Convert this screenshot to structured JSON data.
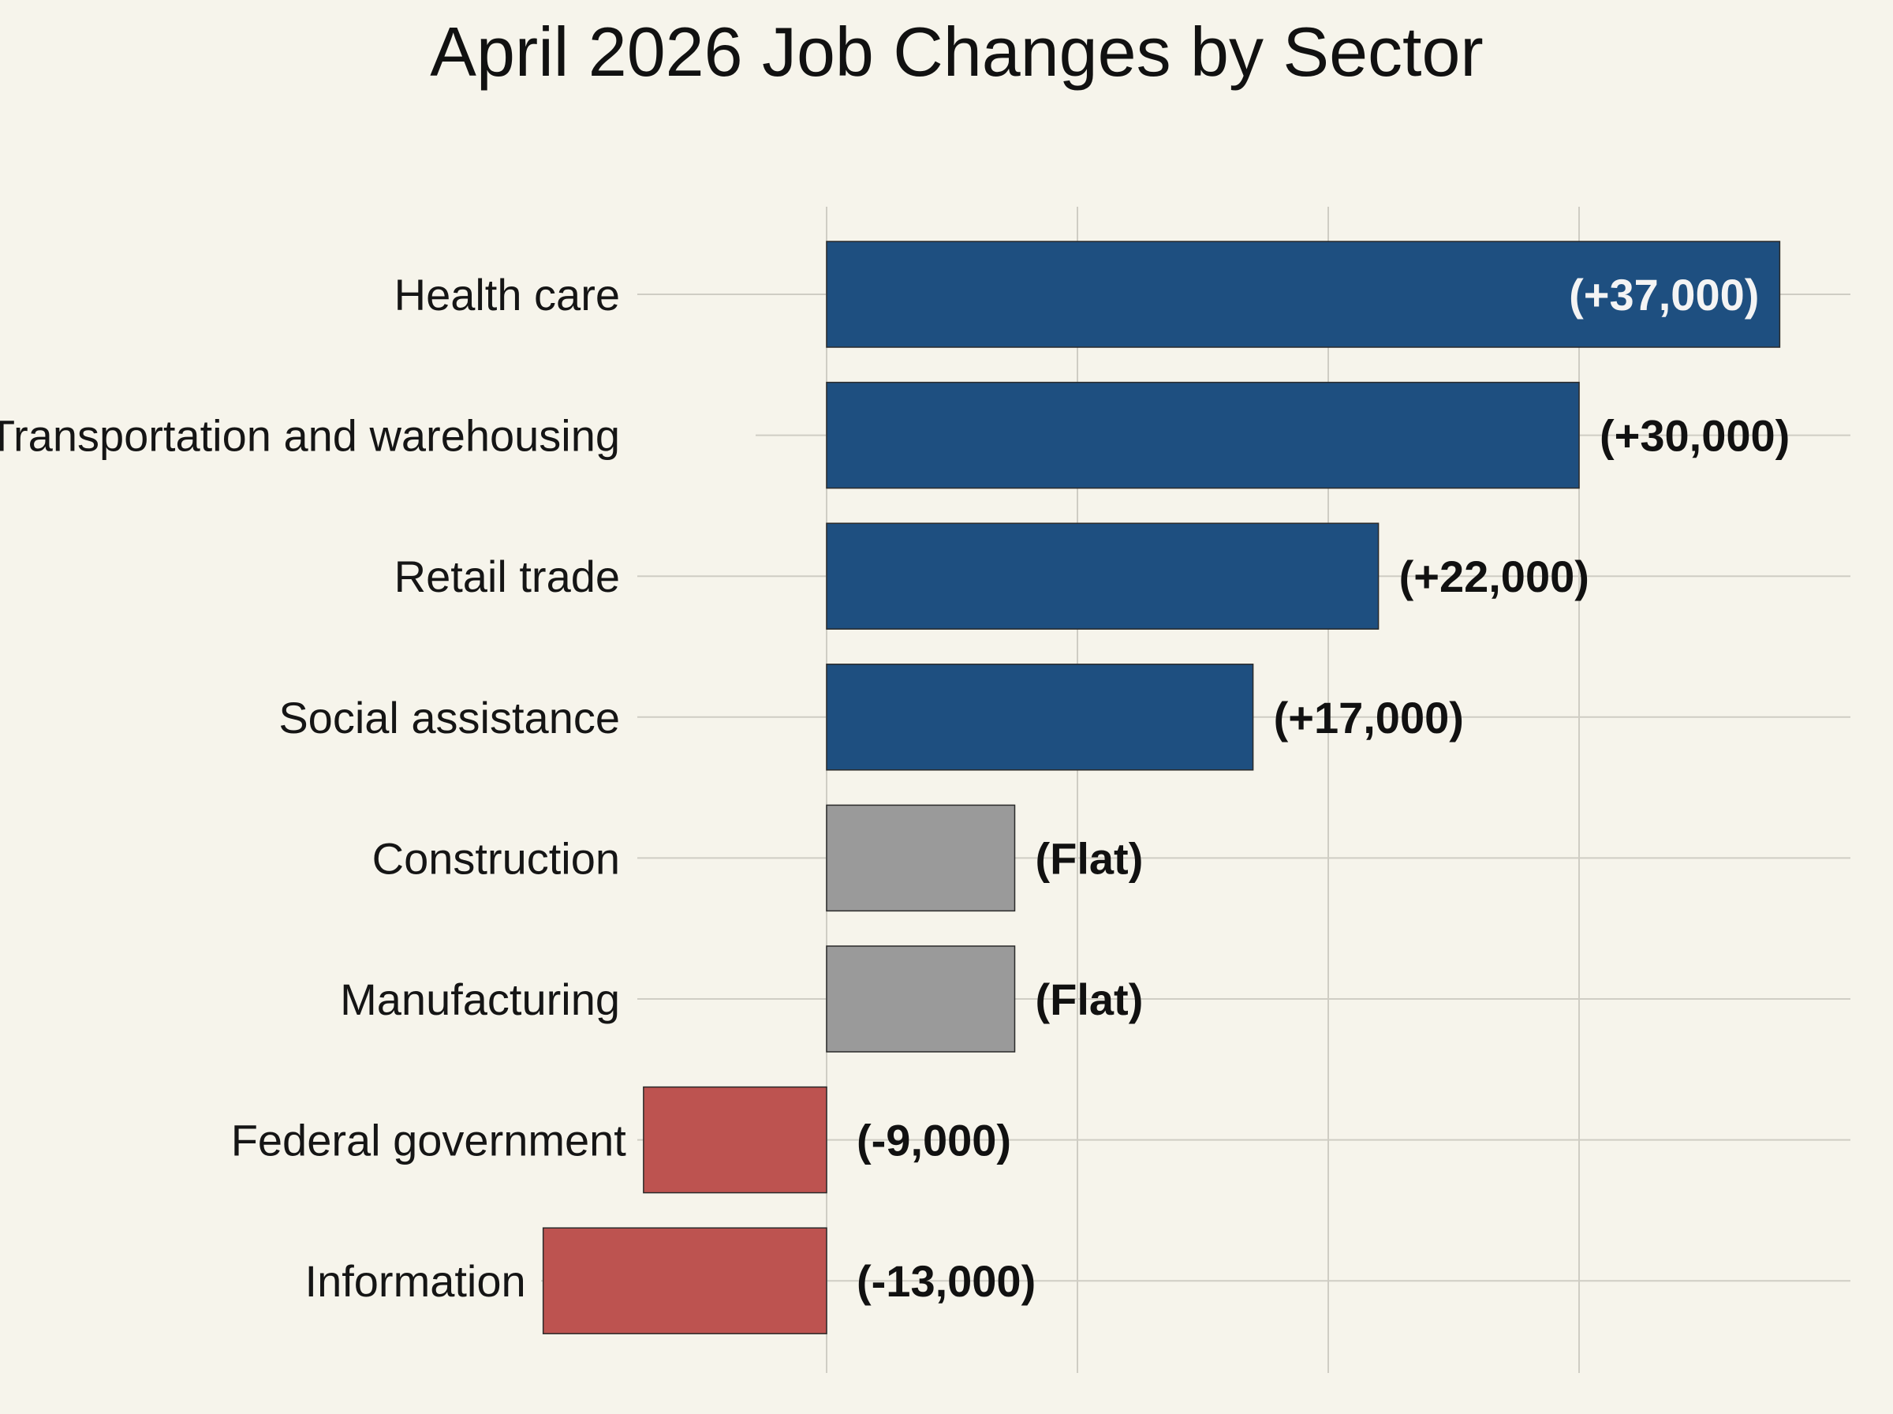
{
  "chart_data": {
    "type": "bar",
    "orientation": "horizontal",
    "title": "April 2026 Job Changes by Sector",
    "xlabel": "",
    "ylabel": "",
    "grid": true,
    "categories": [
      "Health care",
      "Transportation and warehousing",
      "Retail trade",
      "Social assistance",
      "Construction",
      "Manufacturing",
      "Federal government",
      "Information"
    ],
    "values": [
      37000,
      30000,
      22000,
      17000,
      0,
      0,
      -9000,
      -13000
    ],
    "display_bar_values": [
      38000,
      30000,
      22000,
      17000,
      7500,
      7500,
      -7300,
      -11300
    ],
    "value_labels": [
      "(+37,000)",
      "(+30,000)",
      "(+22,000)",
      "(+17,000)",
      "(Flat)",
      "(Flat)",
      "(-9,000)",
      "(-13,000)"
    ],
    "xlim": [
      -12000,
      41000
    ],
    "colors": {
      "positive": "#1e4f80",
      "flat": "#9a9a9a",
      "negative": "#bd5350",
      "background": "#f6f4eb",
      "grid": "#cfcdc4"
    }
  }
}
